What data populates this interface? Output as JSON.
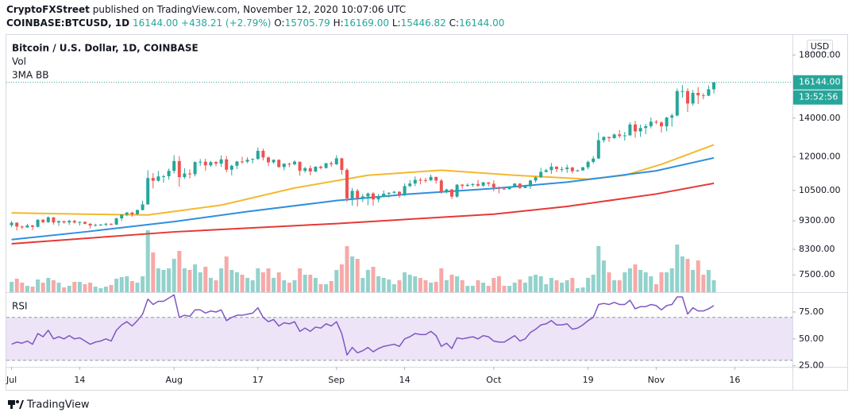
{
  "header": {
    "author": "CryptoFXStreet",
    "published": "published on TradingView.com, November 12, 2020 10:07:06 UTC",
    "symbol": "COINBASE:BTCUSD, 1D",
    "last": "16144.00",
    "change": "+438.21 (+2.79%)",
    "ohlc": [
      {
        "label": "O:",
        "value": "15705.79"
      },
      {
        "label": "H:",
        "value": "16169.00"
      },
      {
        "label": "L:",
        "value": "15446.82"
      },
      {
        "label": "C:",
        "value": "16144.00"
      }
    ]
  },
  "footer": {
    "brand": "TradingView"
  },
  "chart_data": {
    "type": "candlestick",
    "title": "Bitcoin / U.S. Dollar, 1D, COINBASE",
    "currency": "USD",
    "log_scale": true,
    "grid": false,
    "up_color": "#26a69a",
    "down_color": "#ef5350",
    "ylim": [
      7000,
      19500
    ],
    "yticks": [
      {
        "value": 7500,
        "label": "7500.00"
      },
      {
        "value": 8300,
        "label": "8300.00"
      },
      {
        "value": 9300,
        "label": "9300.00"
      },
      {
        "value": 10500,
        "label": "10500.00"
      },
      {
        "value": 12000,
        "label": "12000.00"
      },
      {
        "value": 14000,
        "label": "14000.00"
      },
      {
        "value": 18000,
        "label": "18000.00"
      }
    ],
    "xlim": [
      "06-30",
      "11-27"
    ],
    "xticks": [
      {
        "value": "07-01",
        "label": "Jul"
      },
      {
        "value": "07-14",
        "label": "14"
      },
      {
        "value": "08-01",
        "label": "Aug"
      },
      {
        "value": "08-17",
        "label": "17"
      },
      {
        "value": "09-01",
        "label": "Sep"
      },
      {
        "value": "09-14",
        "label": "14"
      },
      {
        "value": "10-01",
        "label": "Oct"
      },
      {
        "value": "10-19",
        "label": "19"
      },
      {
        "value": "11-01",
        "label": "Nov"
      },
      {
        "value": "11-16",
        "label": "16"
      }
    ],
    "last_price": {
      "value": 16144,
      "label": "16144.00"
    },
    "countdown": "13:52:56",
    "x": [
      "07-01",
      "07-02",
      "07-03",
      "07-04",
      "07-05",
      "07-06",
      "07-07",
      "07-08",
      "07-09",
      "07-10",
      "07-11",
      "07-12",
      "07-13",
      "07-14",
      "07-15",
      "07-16",
      "07-17",
      "07-18",
      "07-19",
      "07-20",
      "07-21",
      "07-22",
      "07-23",
      "07-24",
      "07-25",
      "07-26",
      "07-27",
      "07-28",
      "07-29",
      "07-30",
      "07-31",
      "08-01",
      "08-02",
      "08-03",
      "08-04",
      "08-05",
      "08-06",
      "08-07",
      "08-08",
      "08-09",
      "08-10",
      "08-11",
      "08-12",
      "08-13",
      "08-14",
      "08-15",
      "08-16",
      "08-17",
      "08-18",
      "08-19",
      "08-20",
      "08-21",
      "08-22",
      "08-23",
      "08-24",
      "08-25",
      "08-26",
      "08-27",
      "08-28",
      "08-29",
      "08-30",
      "08-31",
      "09-01",
      "09-02",
      "09-03",
      "09-04",
      "09-05",
      "09-06",
      "09-07",
      "09-08",
      "09-09",
      "09-10",
      "09-11",
      "09-12",
      "09-13",
      "09-14",
      "09-15",
      "09-16",
      "09-17",
      "09-18",
      "09-19",
      "09-20",
      "09-21",
      "09-22",
      "09-23",
      "09-24",
      "09-25",
      "09-26",
      "09-27",
      "09-28",
      "09-29",
      "09-30",
      "10-01",
      "10-02",
      "10-03",
      "10-04",
      "10-05",
      "10-06",
      "10-07",
      "10-08",
      "10-09",
      "10-10",
      "10-11",
      "10-12",
      "10-13",
      "10-14",
      "10-15",
      "10-16",
      "10-17",
      "10-18",
      "10-19",
      "10-20",
      "10-21",
      "10-22",
      "10-23",
      "10-24",
      "10-25",
      "10-26",
      "10-27",
      "10-28",
      "10-29",
      "10-30",
      "10-31",
      "11-01",
      "11-02",
      "11-03",
      "11-04",
      "11-05",
      "11-06",
      "11-07",
      "11-08",
      "11-09",
      "11-10",
      "11-11",
      "11-12"
    ],
    "open": [
      9140,
      9230,
      9090,
      9060,
      9130,
      9080,
      9340,
      9250,
      9430,
      9240,
      9290,
      9240,
      9300,
      9240,
      9260,
      9190,
      9130,
      9150,
      9160,
      9190,
      9160,
      9390,
      9530,
      9610,
      9550,
      9710,
      9930,
      11030,
      10910,
      11100,
      11110,
      11350,
      11800,
      11070,
      11230,
      11200,
      11750,
      11770,
      11600,
      11750,
      11680,
      11880,
      11400,
      11580,
      11780,
      11770,
      11860,
      11900,
      12290,
      11970,
      11740,
      11860,
      11520,
      11680,
      11650,
      11770,
      11350,
      11470,
      11320,
      11540,
      11480,
      11700,
      11650,
      11930,
      11390,
      10170,
      10480,
      10170,
      10250,
      10370,
      10130,
      10240,
      10360,
      10400,
      10440,
      10320,
      10680,
      10790,
      10950,
      10940,
      10930,
      11080,
      10920,
      10420,
      10540,
      10240,
      10740,
      10690,
      10730,
      10770,
      10700,
      10840,
      10780,
      10620,
      10570,
      10550,
      10670,
      10790,
      10600,
      10670,
      10920,
      11060,
      11300,
      11380,
      11540,
      11430,
      11430,
      11500,
      11330,
      11370,
      11510,
      11760,
      11920,
      12820,
      12990,
      12930,
      13120,
      13040,
      13070,
      13650,
      13280,
      13460,
      13560,
      13800,
      13760,
      13550,
      14030,
      14150,
      15590,
      15590,
      14840,
      15480,
      15330,
      15310,
      15705.79
    ],
    "high": [
      9290,
      9250,
      9130,
      9190,
      9150,
      9360,
      9370,
      9470,
      9440,
      9310,
      9300,
      9340,
      9340,
      9280,
      9280,
      9220,
      9190,
      9190,
      9230,
      9210,
      9420,
      9540,
      9640,
      9640,
      9730,
      10080,
      11380,
      11250,
      11340,
      11170,
      11450,
      12080,
      12030,
      11470,
      11420,
      11790,
      11900,
      11910,
      11810,
      11800,
      12070,
      12040,
      11630,
      11800,
      12000,
      11980,
      11930,
      12460,
      12400,
      12020,
      11880,
      11880,
      11690,
      11720,
      11830,
      11770,
      11530,
      11590,
      11550,
      11580,
      11710,
      11790,
      12080,
      11950,
      11470,
      10600,
      10560,
      10350,
      10410,
      10430,
      10350,
      10500,
      10420,
      10480,
      10470,
      10800,
      10940,
      11100,
      11040,
      11040,
      11180,
      11080,
      10990,
      10570,
      10560,
      10770,
      10770,
      10800,
      10800,
      10950,
      10860,
      10850,
      10930,
      10670,
      10600,
      10680,
      10800,
      10800,
      10680,
      10950,
      11100,
      11490,
      11440,
      11710,
      11560,
      11540,
      11630,
      11540,
      11400,
      11530,
      11820,
      12040,
      13220,
      13020,
      13000,
      13160,
      13350,
      13250,
      13770,
      13850,
      13640,
      13680,
      14030,
      13900,
      13830,
      14070,
      14250,
      15750,
      15970,
      15770,
      15660,
      15840,
      15460,
      15950,
      16169
    ],
    "low": [
      9070,
      8950,
      9000,
      9040,
      8960,
      9060,
      9210,
      9230,
      9160,
      9120,
      9200,
      9150,
      9200,
      9130,
      9170,
      9020,
      9090,
      9120,
      9100,
      9140,
      9150,
      9290,
      9480,
      9450,
      9530,
      9690,
      9920,
      10580,
      10870,
      10830,
      10960,
      11230,
      10660,
      10990,
      11010,
      11100,
      11580,
      11350,
      11530,
      11560,
      11530,
      11280,
      11150,
      11430,
      11680,
      11700,
      11690,
      11850,
      11830,
      11570,
      11670,
      11500,
      11380,
      11520,
      11600,
      11130,
      11260,
      11150,
      11290,
      11420,
      11450,
      11530,
      11610,
      11180,
      10030,
      9880,
      9850,
      10020,
      9900,
      9880,
      10010,
      10220,
      10200,
      10360,
      10200,
      10260,
      10630,
      10680,
      10750,
      10820,
      10890,
      10780,
      10360,
      10380,
      10140,
      10200,
      10560,
      10650,
      10650,
      10640,
      10640,
      10670,
      10460,
      10380,
      10520,
      10530,
      10630,
      10560,
      10590,
      10560,
      10830,
      11040,
      11280,
      11210,
      11290,
      11290,
      11260,
      11230,
      11320,
      11350,
      11420,
      11680,
      11900,
      12700,
      12730,
      12890,
      12930,
      12800,
      13060,
      12950,
      12990,
      13130,
      13440,
      13660,
      13220,
      13290,
      13530,
      14090,
      15190,
      14350,
      14720,
      14810,
      15090,
      15290,
      15446.82
    ],
    "close": [
      9230,
      9090,
      9060,
      9130,
      9080,
      9340,
      9250,
      9430,
      9240,
      9290,
      9240,
      9300,
      9240,
      9260,
      9190,
      9130,
      9150,
      9160,
      9190,
      9160,
      9390,
      9530,
      9610,
      9550,
      9710,
      9930,
      11030,
      10910,
      11100,
      11110,
      11350,
      11800,
      11070,
      11230,
      11200,
      11750,
      11770,
      11600,
      11750,
      11680,
      11880,
      11400,
      11580,
      11780,
      11770,
      11860,
      11900,
      12290,
      11970,
      11740,
      11860,
      11520,
      11680,
      11650,
      11770,
      11350,
      11470,
      11320,
      11540,
      11480,
      11700,
      11650,
      11930,
      11390,
      10170,
      10480,
      10170,
      10250,
      10370,
      10130,
      10240,
      10360,
      10400,
      10440,
      10320,
      10680,
      10790,
      10950,
      10940,
      10930,
      11080,
      10920,
      10420,
      10540,
      10240,
      10740,
      10690,
      10730,
      10770,
      10700,
      10840,
      10780,
      10620,
      10570,
      10550,
      10670,
      10790,
      10600,
      10670,
      10920,
      11060,
      11300,
      11380,
      11540,
      11430,
      11430,
      11500,
      11330,
      11370,
      11510,
      11760,
      11920,
      12820,
      12990,
      12930,
      13120,
      13040,
      13070,
      13650,
      13280,
      13460,
      13560,
      13800,
      13760,
      13550,
      14030,
      14150,
      15590,
      15590,
      14840,
      15480,
      15330,
      15310,
      15705.79,
      16144
    ],
    "volume": {
      "name": "Vol",
      "ylim": [
        0,
        40000
      ],
      "up_color": "#93d2cc",
      "down_color": "#f7a9a7",
      "values": [
        6500,
        8500,
        6000,
        4000,
        3500,
        8000,
        6000,
        9000,
        7500,
        6000,
        3000,
        4000,
        6500,
        6500,
        5000,
        6000,
        3500,
        2500,
        3500,
        4500,
        8500,
        9500,
        10000,
        7000,
        6000,
        10000,
        39000,
        25000,
        15000,
        14000,
        15000,
        21000,
        26000,
        15000,
        14000,
        17500,
        12500,
        16000,
        9000,
        7500,
        15000,
        22500,
        14000,
        12500,
        11000,
        9000,
        7500,
        15000,
        12500,
        15000,
        9000,
        12500,
        7500,
        6000,
        7500,
        15000,
        11000,
        11000,
        9000,
        5000,
        5000,
        7000,
        14000,
        17500,
        29000,
        22500,
        21000,
        9000,
        14000,
        16000,
        10000,
        9000,
        8000,
        5000,
        7500,
        12500,
        11000,
        10000,
        9000,
        7500,
        6000,
        6500,
        15000,
        7500,
        11000,
        10000,
        7500,
        4000,
        4000,
        7500,
        6000,
        4000,
        9000,
        10000,
        4000,
        4000,
        6000,
        8000,
        6000,
        10000,
        11000,
        10000,
        5000,
        9000,
        7500,
        6000,
        7500,
        9000,
        2500,
        3000,
        9000,
        11000,
        29000,
        20000,
        12500,
        7500,
        7500,
        12500,
        15000,
        17500,
        14000,
        12500,
        10000,
        5000,
        12500,
        12500,
        15000,
        30000,
        22500,
        21000,
        14000,
        20000,
        11000,
        14000,
        7500
      ]
    },
    "overlay": {
      "name": "3MA BB",
      "series": [
        {
          "color": "#f5b82e",
          "x": [
            "07-01",
            "07-15",
            "07-27",
            "08-10",
            "08-24",
            "09-07",
            "09-21",
            "10-05",
            "10-19",
            "10-26",
            "11-02",
            "11-12"
          ],
          "values": [
            9600,
            9550,
            9520,
            9900,
            10600,
            11150,
            11380,
            11150,
            10980,
            11150,
            11650,
            12590
          ]
        },
        {
          "color": "#2f8fdd",
          "x": [
            "07-01",
            "07-15",
            "08-01",
            "08-15",
            "09-01",
            "09-15",
            "10-01",
            "10-15",
            "11-01",
            "11-12"
          ],
          "values": [
            8630,
            8900,
            9270,
            9650,
            10080,
            10350,
            10580,
            10850,
            11350,
            11950
          ]
        },
        {
          "color": "#e53935",
          "x": [
            "07-01",
            "08-01",
            "09-01",
            "10-01",
            "10-15",
            "11-01",
            "11-12"
          ],
          "values": [
            8490,
            8900,
            9200,
            9550,
            9850,
            10350,
            10800
          ]
        }
      ]
    },
    "rsi": {
      "name": "RSI",
      "color": "#7e57c2",
      "ylim": [
        24,
        92
      ],
      "band": [
        30,
        70
      ],
      "band_color": "#ede4f7",
      "yticks": [
        {
          "value": 25,
          "label": "25.00"
        },
        {
          "value": 50,
          "label": "50.00"
        },
        {
          "value": 75,
          "label": "75.00"
        }
      ],
      "values": [
        45,
        47,
        46,
        48,
        45,
        55,
        52,
        58,
        50,
        52,
        50,
        53,
        50,
        51,
        48,
        45,
        47,
        48,
        50,
        48,
        58,
        63,
        66,
        62,
        67,
        73,
        87,
        82,
        85,
        85,
        88,
        91,
        70,
        72,
        71,
        77,
        77,
        74,
        76,
        75,
        77,
        67,
        70,
        72,
        72,
        73,
        74,
        79,
        70,
        66,
        68,
        62,
        65,
        64,
        66,
        57,
        60,
        57,
        61,
        60,
        64,
        62,
        66,
        55,
        35,
        42,
        37,
        39,
        42,
        38,
        41,
        43,
        44,
        45,
        43,
        50,
        52,
        55,
        54,
        54,
        57,
        53,
        43,
        46,
        41,
        51,
        50,
        51,
        52,
        50,
        53,
        52,
        48,
        47,
        47,
        50,
        53,
        48,
        50,
        56,
        59,
        63,
        64,
        67,
        63,
        63,
        64,
        59,
        60,
        63,
        67,
        70,
        82,
        83,
        82,
        84,
        82,
        82,
        86,
        78,
        80,
        80,
        82,
        81,
        77,
        81,
        82,
        89,
        89,
        73,
        79,
        76,
        76,
        78,
        81
      ]
    }
  }
}
